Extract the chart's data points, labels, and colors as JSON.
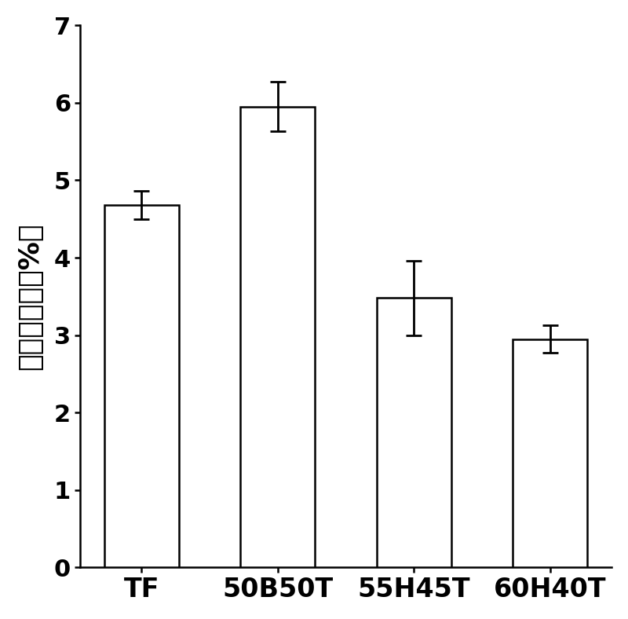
{
  "categories": [
    "TF",
    "50B50T",
    "55H45T",
    "60H40T"
  ],
  "values": [
    4.68,
    5.95,
    3.48,
    2.95
  ],
  "errors": [
    0.18,
    0.32,
    0.48,
    0.18
  ],
  "bar_color": "#ffffff",
  "bar_edgecolor": "#000000",
  "bar_linewidth": 1.8,
  "bar_width": 0.55,
  "ylabel": "聚合收缩率（%）",
  "ylim": [
    0,
    7
  ],
  "yticks": [
    0,
    1,
    2,
    3,
    4,
    5,
    6,
    7
  ],
  "ylabel_fontsize": 26,
  "tick_fontsize": 22,
  "xtick_fontsize": 24,
  "errorbar_capsize": 7,
  "errorbar_linewidth": 2.0,
  "errorbar_capthick": 2.0,
  "background_color": "#ffffff",
  "spine_linewidth": 1.8,
  "figsize": [
    8.0,
    7.88
  ]
}
